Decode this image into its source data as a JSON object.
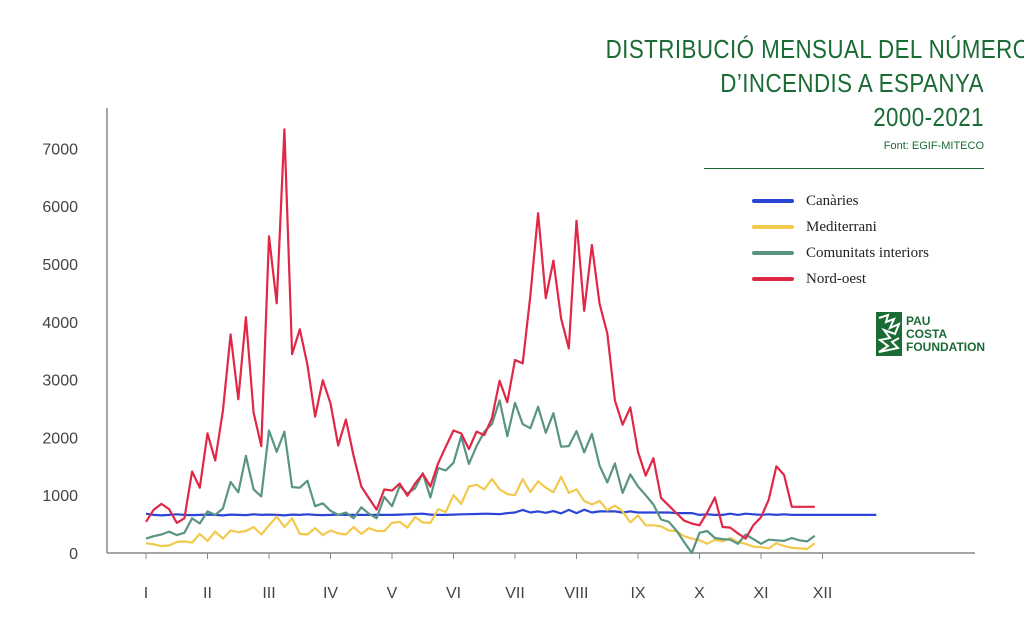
{
  "title_lines": [
    "DISTRIBUCIÓ MENSUAL DEL NÚMERO",
    "D’INCENDIS A ESPANYA",
    "2000-2021"
  ],
  "source": "Font: EGIF-MITECO",
  "logo": {
    "text_lines": [
      "PAU",
      "COSTA",
      "FOUNDATION"
    ],
    "icon": "leaf-logo-icon"
  },
  "colors": {
    "accent": "#1b6b35",
    "canaries": "#2b45d6",
    "mediterrani": "#f2c94c",
    "interiors": "#5a9483",
    "nordoest": "#e02746"
  },
  "chart_data": {
    "type": "line",
    "title": "DISTRIBUCIÓ MENSUAL DEL NÚMERO D’INCENDIS A ESPANYA 2000-2021",
    "ylim": [
      0,
      7700
    ],
    "yticks": [
      0,
      1000,
      2000,
      3000,
      4000,
      5000,
      6000,
      7000
    ],
    "ytick_labels": [
      "0",
      "1000",
      "2000",
      "3000",
      "4000",
      "5000",
      "6000",
      "7000"
    ],
    "month_labels": [
      "I",
      "II",
      "III",
      "IV",
      "V",
      "VI",
      "VII",
      "VIII",
      "IX",
      "X",
      "XI",
      "XII"
    ],
    "points_per_month": 8,
    "legend_position": "top-right",
    "grid": false,
    "series": [
      {
        "name": "Canàries",
        "color": "#2b45d6",
        "values": [
          680,
          660,
          650,
          660,
          670,
          660,
          655,
          660,
          665,
          660,
          650,
          665,
          660,
          655,
          670,
          660,
          665,
          660,
          650,
          665,
          660,
          670,
          660,
          655,
          660,
          665,
          660,
          660,
          660,
          660,
          660,
          660,
          660,
          665,
          670,
          675,
          680,
          665,
          660,
          660,
          665,
          670,
          672,
          675,
          680,
          676,
          672,
          690,
          700,
          745,
          700,
          720,
          695,
          725,
          685,
          745,
          690,
          750,
          700,
          720,
          720,
          720,
          700,
          720,
          700,
          700,
          700,
          700,
          700,
          690,
          690,
          690,
          660,
          670,
          660,
          660,
          680,
          660,
          680,
          670,
          660,
          670,
          660,
          670,
          660,
          660,
          660,
          660,
          660,
          660,
          660,
          660,
          660,
          660,
          660,
          660
        ]
      },
      {
        "name": "Mediterrani",
        "color": "#f2c94c",
        "values": [
          170,
          150,
          120,
          130,
          190,
          200,
          180,
          330,
          210,
          370,
          250,
          390,
          360,
          380,
          450,
          320,
          480,
          630,
          450,
          600,
          330,
          320,
          430,
          310,
          390,
          340,
          320,
          450,
          330,
          430,
          380,
          380,
          520,
          540,
          440,
          620,
          530,
          520,
          760,
          710,
          1000,
          850,
          1150,
          1180,
          1100,
          1280,
          1100,
          1020,
          1000,
          1280,
          1050,
          1240,
          1130,
          1050,
          1320,
          1040,
          1100,
          900,
          840,
          900,
          740,
          820,
          720,
          530,
          650,
          480,
          480,
          460,
          390,
          380,
          290,
          250,
          220,
          160,
          230,
          200,
          260,
          190,
          160,
          110,
          100,
          80,
          170,
          120,
          90,
          80,
          70,
          170
        ]
      },
      {
        "name": "Comunitats interiors",
        "color": "#5a9483",
        "values": [
          250,
          290,
          320,
          370,
          310,
          350,
          600,
          510,
          720,
          660,
          770,
          1230,
          1050,
          1680,
          1100,
          980,
          2120,
          1750,
          2100,
          1140,
          1130,
          1250,
          810,
          860,
          730,
          660,
          700,
          600,
          790,
          680,
          600,
          970,
          810,
          1160,
          1030,
          1120,
          1380,
          960,
          1470,
          1430,
          1560,
          2020,
          1540,
          1850,
          2100,
          2230,
          2640,
          2020,
          2600,
          2230,
          2160,
          2530,
          2080,
          2420,
          1840,
          1850,
          2110,
          1740,
          2060,
          1510,
          1220,
          1550,
          1040,
          1360,
          1150,
          1000,
          840,
          580,
          540,
          390,
          190,
          0,
          350,
          380,
          260,
          240,
          230,
          160,
          320,
          240,
          160,
          230,
          220,
          210,
          260,
          220,
          200,
          300
        ]
      },
      {
        "name": "Nord-oest",
        "color": "#e02746",
        "values": [
          540,
          750,
          850,
          760,
          520,
          600,
          1410,
          1130,
          2070,
          1600,
          2460,
          3780,
          2660,
          4080,
          2430,
          1850,
          5480,
          4320,
          7330,
          3440,
          3870,
          3260,
          2360,
          2990,
          2590,
          1860,
          2310,
          1680,
          1150,
          950,
          750,
          1100,
          1080,
          1200,
          990,
          1200,
          1370,
          1150,
          1550,
          1840,
          2120,
          2070,
          1800,
          2100,
          2040,
          2330,
          2980,
          2610,
          3340,
          3280,
          4460,
          5880,
          4410,
          5060,
          4060,
          3540,
          5750,
          4190,
          5330,
          4310,
          3800,
          2640,
          2220,
          2520,
          1750,
          1340,
          1640,
          950,
          820,
          690,
          560,
          510,
          480,
          700,
          960,
          450,
          440,
          340,
          250,
          480,
          620,
          920,
          1500,
          1350,
          800,
          800,
          800,
          800
        ]
      }
    ]
  }
}
